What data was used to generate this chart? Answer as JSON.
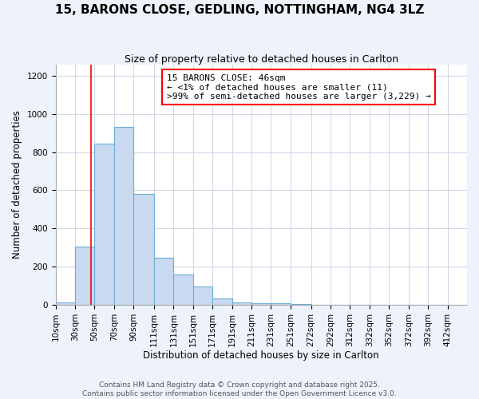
{
  "title": "15, BARONS CLOSE, GEDLING, NOTTINGHAM, NG4 3LZ",
  "subtitle": "Size of property relative to detached houses in Carlton",
  "xlabel": "Distribution of detached houses by size in Carlton",
  "ylabel": "Number of detached properties",
  "bar_left_edges": [
    10,
    30,
    50,
    70,
    90,
    111,
    131,
    151,
    171,
    191,
    211,
    231,
    251,
    272,
    292,
    312,
    332,
    352,
    372,
    392
  ],
  "bar_widths": [
    20,
    20,
    20,
    20,
    21,
    20,
    20,
    20,
    20,
    20,
    20,
    20,
    21,
    20,
    20,
    20,
    20,
    20,
    20,
    20
  ],
  "bar_heights": [
    15,
    305,
    845,
    930,
    580,
    245,
    160,
    95,
    33,
    14,
    9,
    7,
    3,
    2,
    1,
    1,
    0,
    0,
    0,
    0
  ],
  "bar_color": "#c9d9f0",
  "bar_edgecolor": "#6baed6",
  "tick_labels": [
    "10sqm",
    "30sqm",
    "50sqm",
    "70sqm",
    "90sqm",
    "111sqm",
    "131sqm",
    "151sqm",
    "171sqm",
    "191sqm",
    "211sqm",
    "231sqm",
    "251sqm",
    "272sqm",
    "292sqm",
    "312sqm",
    "332sqm",
    "352sqm",
    "372sqm",
    "392sqm",
    "412sqm"
  ],
  "tick_positions": [
    10,
    30,
    50,
    70,
    90,
    111,
    131,
    151,
    171,
    191,
    211,
    231,
    251,
    272,
    292,
    312,
    332,
    352,
    372,
    392,
    412
  ],
  "ylim": [
    0,
    1260
  ],
  "xlim": [
    10,
    432
  ],
  "yticks": [
    0,
    200,
    400,
    600,
    800,
    1000,
    1200
  ],
  "red_line_x": 46,
  "annotation_line1": "15 BARONS CLOSE: 46sqm",
  "annotation_line2": "← <1% of detached houses are smaller (11)",
  "annotation_line3": ">99% of semi-detached houses are larger (3,229) →",
  "footer_line1": "Contains HM Land Registry data © Crown copyright and database right 2025.",
  "footer_line2": "Contains public sector information licensed under the Open Government Licence v3.0.",
  "title_fontsize": 11,
  "subtitle_fontsize": 9,
  "axis_label_fontsize": 8.5,
  "tick_fontsize": 7.5,
  "annotation_fontsize": 8,
  "footer_fontsize": 6.5,
  "background_color": "#eef2fa",
  "plot_background_color": "#ffffff",
  "grid_color": "#d0d8e8"
}
